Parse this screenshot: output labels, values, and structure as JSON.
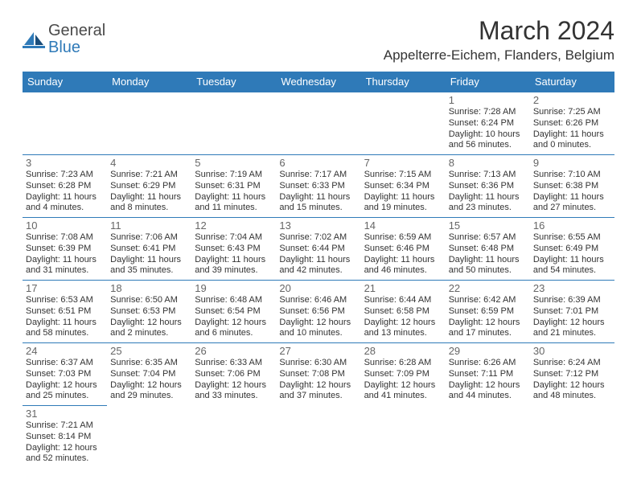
{
  "logo": {
    "text_general": "General",
    "text_blue": "Blue"
  },
  "header": {
    "month_title": "March 2024",
    "location": "Appelterre-Eichem, Flanders, Belgium"
  },
  "colors": {
    "header_bg": "#2f7ab8",
    "header_text": "#ffffff",
    "border": "#2f7ab8"
  },
  "daynames": [
    "Sunday",
    "Monday",
    "Tuesday",
    "Wednesday",
    "Thursday",
    "Friday",
    "Saturday"
  ],
  "weeks": [
    [
      null,
      null,
      null,
      null,
      null,
      {
        "n": "1",
        "sunrise": "Sunrise: 7:28 AM",
        "sunset": "Sunset: 6:24 PM",
        "daylight": "Daylight: 10 hours and 56 minutes."
      },
      {
        "n": "2",
        "sunrise": "Sunrise: 7:25 AM",
        "sunset": "Sunset: 6:26 PM",
        "daylight": "Daylight: 11 hours and 0 minutes."
      }
    ],
    [
      {
        "n": "3",
        "sunrise": "Sunrise: 7:23 AM",
        "sunset": "Sunset: 6:28 PM",
        "daylight": "Daylight: 11 hours and 4 minutes."
      },
      {
        "n": "4",
        "sunrise": "Sunrise: 7:21 AM",
        "sunset": "Sunset: 6:29 PM",
        "daylight": "Daylight: 11 hours and 8 minutes."
      },
      {
        "n": "5",
        "sunrise": "Sunrise: 7:19 AM",
        "sunset": "Sunset: 6:31 PM",
        "daylight": "Daylight: 11 hours and 11 minutes."
      },
      {
        "n": "6",
        "sunrise": "Sunrise: 7:17 AM",
        "sunset": "Sunset: 6:33 PM",
        "daylight": "Daylight: 11 hours and 15 minutes."
      },
      {
        "n": "7",
        "sunrise": "Sunrise: 7:15 AM",
        "sunset": "Sunset: 6:34 PM",
        "daylight": "Daylight: 11 hours and 19 minutes."
      },
      {
        "n": "8",
        "sunrise": "Sunrise: 7:13 AM",
        "sunset": "Sunset: 6:36 PM",
        "daylight": "Daylight: 11 hours and 23 minutes."
      },
      {
        "n": "9",
        "sunrise": "Sunrise: 7:10 AM",
        "sunset": "Sunset: 6:38 PM",
        "daylight": "Daylight: 11 hours and 27 minutes."
      }
    ],
    [
      {
        "n": "10",
        "sunrise": "Sunrise: 7:08 AM",
        "sunset": "Sunset: 6:39 PM",
        "daylight": "Daylight: 11 hours and 31 minutes."
      },
      {
        "n": "11",
        "sunrise": "Sunrise: 7:06 AM",
        "sunset": "Sunset: 6:41 PM",
        "daylight": "Daylight: 11 hours and 35 minutes."
      },
      {
        "n": "12",
        "sunrise": "Sunrise: 7:04 AM",
        "sunset": "Sunset: 6:43 PM",
        "daylight": "Daylight: 11 hours and 39 minutes."
      },
      {
        "n": "13",
        "sunrise": "Sunrise: 7:02 AM",
        "sunset": "Sunset: 6:44 PM",
        "daylight": "Daylight: 11 hours and 42 minutes."
      },
      {
        "n": "14",
        "sunrise": "Sunrise: 6:59 AM",
        "sunset": "Sunset: 6:46 PM",
        "daylight": "Daylight: 11 hours and 46 minutes."
      },
      {
        "n": "15",
        "sunrise": "Sunrise: 6:57 AM",
        "sunset": "Sunset: 6:48 PM",
        "daylight": "Daylight: 11 hours and 50 minutes."
      },
      {
        "n": "16",
        "sunrise": "Sunrise: 6:55 AM",
        "sunset": "Sunset: 6:49 PM",
        "daylight": "Daylight: 11 hours and 54 minutes."
      }
    ],
    [
      {
        "n": "17",
        "sunrise": "Sunrise: 6:53 AM",
        "sunset": "Sunset: 6:51 PM",
        "daylight": "Daylight: 11 hours and 58 minutes."
      },
      {
        "n": "18",
        "sunrise": "Sunrise: 6:50 AM",
        "sunset": "Sunset: 6:53 PM",
        "daylight": "Daylight: 12 hours and 2 minutes."
      },
      {
        "n": "19",
        "sunrise": "Sunrise: 6:48 AM",
        "sunset": "Sunset: 6:54 PM",
        "daylight": "Daylight: 12 hours and 6 minutes."
      },
      {
        "n": "20",
        "sunrise": "Sunrise: 6:46 AM",
        "sunset": "Sunset: 6:56 PM",
        "daylight": "Daylight: 12 hours and 10 minutes."
      },
      {
        "n": "21",
        "sunrise": "Sunrise: 6:44 AM",
        "sunset": "Sunset: 6:58 PM",
        "daylight": "Daylight: 12 hours and 13 minutes."
      },
      {
        "n": "22",
        "sunrise": "Sunrise: 6:42 AM",
        "sunset": "Sunset: 6:59 PM",
        "daylight": "Daylight: 12 hours and 17 minutes."
      },
      {
        "n": "23",
        "sunrise": "Sunrise: 6:39 AM",
        "sunset": "Sunset: 7:01 PM",
        "daylight": "Daylight: 12 hours and 21 minutes."
      }
    ],
    [
      {
        "n": "24",
        "sunrise": "Sunrise: 6:37 AM",
        "sunset": "Sunset: 7:03 PM",
        "daylight": "Daylight: 12 hours and 25 minutes."
      },
      {
        "n": "25",
        "sunrise": "Sunrise: 6:35 AM",
        "sunset": "Sunset: 7:04 PM",
        "daylight": "Daylight: 12 hours and 29 minutes."
      },
      {
        "n": "26",
        "sunrise": "Sunrise: 6:33 AM",
        "sunset": "Sunset: 7:06 PM",
        "daylight": "Daylight: 12 hours and 33 minutes."
      },
      {
        "n": "27",
        "sunrise": "Sunrise: 6:30 AM",
        "sunset": "Sunset: 7:08 PM",
        "daylight": "Daylight: 12 hours and 37 minutes."
      },
      {
        "n": "28",
        "sunrise": "Sunrise: 6:28 AM",
        "sunset": "Sunset: 7:09 PM",
        "daylight": "Daylight: 12 hours and 41 minutes."
      },
      {
        "n": "29",
        "sunrise": "Sunrise: 6:26 AM",
        "sunset": "Sunset: 7:11 PM",
        "daylight": "Daylight: 12 hours and 44 minutes."
      },
      {
        "n": "30",
        "sunrise": "Sunrise: 6:24 AM",
        "sunset": "Sunset: 7:12 PM",
        "daylight": "Daylight: 12 hours and 48 minutes."
      }
    ],
    [
      {
        "n": "31",
        "sunrise": "Sunrise: 7:21 AM",
        "sunset": "Sunset: 8:14 PM",
        "daylight": "Daylight: 12 hours and 52 minutes."
      },
      null,
      null,
      null,
      null,
      null,
      null
    ]
  ]
}
